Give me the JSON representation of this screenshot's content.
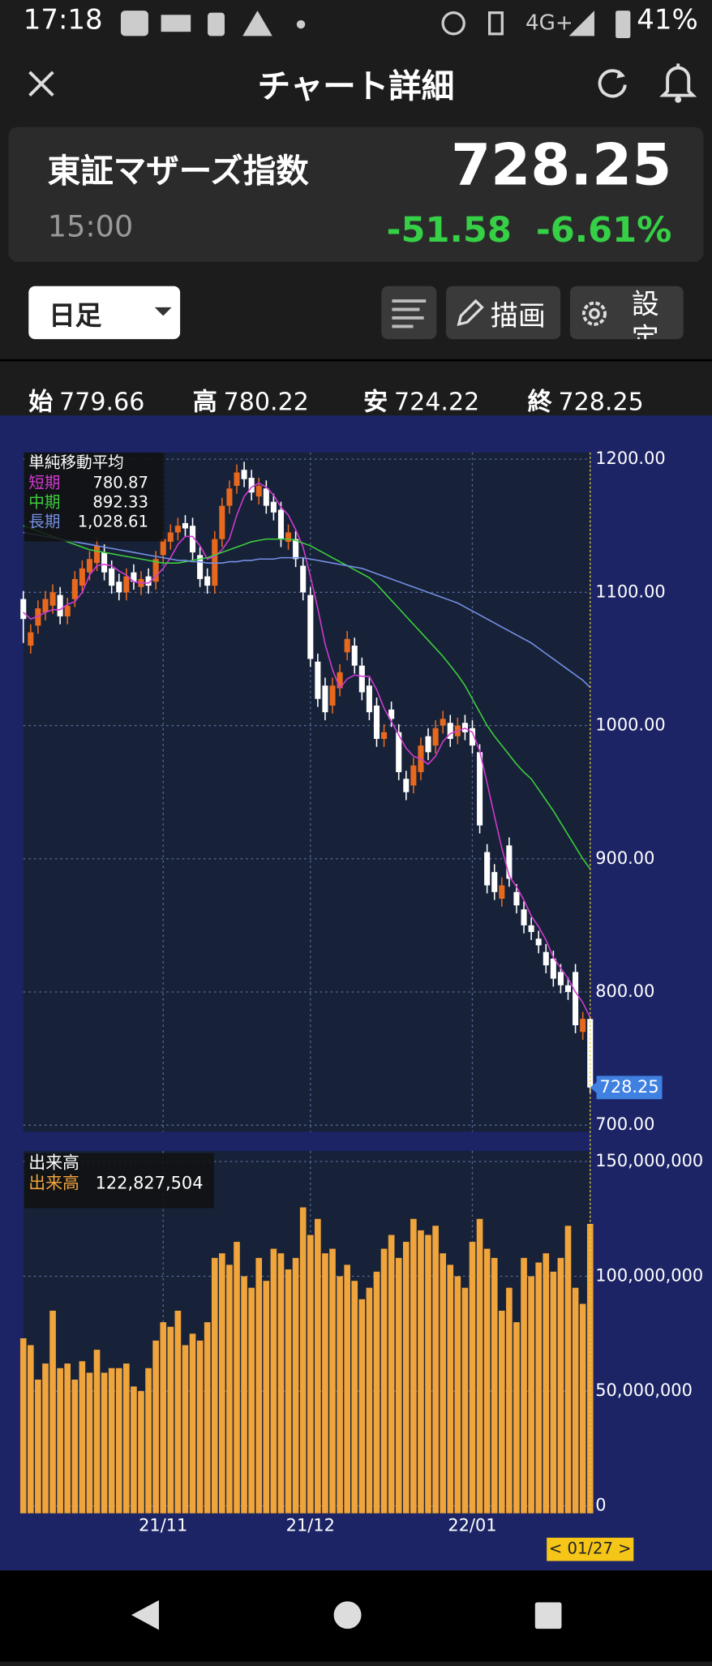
{
  "status_bar": {
    "time": "17:18",
    "network": "4G+",
    "battery": "41%"
  },
  "header": {
    "title": "チャート詳細"
  },
  "quote": {
    "name": "東証マザーズ指数",
    "time": "15:00",
    "price": "728.25",
    "change": "-51.58",
    "change_pct": "-6.61%"
  },
  "toolbar": {
    "period": "日足",
    "draw": "描画",
    "settings": "設定"
  },
  "ohlc": [
    {
      "label": "始",
      "value": "779.66"
    },
    {
      "label": "高",
      "value": "780.22"
    },
    {
      "label": "安",
      "value": "724.22"
    },
    {
      "label": "終",
      "value": "728.25"
    }
  ],
  "chart_data": {
    "type": "candlestick",
    "legend_title": "単純移動平均",
    "up_color": "#e8691e",
    "down_color": "#ffffff",
    "xlim": [
      0,
      77
    ],
    "xticks": [
      {
        "value": 19,
        "label": "21/11"
      },
      {
        "value": 39,
        "label": "21/12"
      },
      {
        "value": 61,
        "label": "22/01"
      }
    ],
    "ylim": [
      695,
      1205
    ],
    "yticks": [
      {
        "value": 700,
        "label": "700.00"
      },
      {
        "value": 800,
        "label": "800.00"
      },
      {
        "value": 900,
        "label": "900.00"
      },
      {
        "value": 1000,
        "label": "1000.00"
      },
      {
        "value": 1100,
        "label": "1100.00"
      },
      {
        "value": 1200,
        "label": "1200.00"
      }
    ],
    "grid": true,
    "current_label": "728.25",
    "cursor_label": "< 01/27 >",
    "open": [
      1095,
      1060,
      1075,
      1085,
      1090,
      1098,
      1082,
      1095,
      1105,
      1115,
      1122,
      1130,
      1118,
      1108,
      1100,
      1115,
      1104,
      1112,
      1108,
      1128,
      1138,
      1145,
      1152,
      1150,
      1128,
      1112,
      1105,
      1140,
      1165,
      1180,
      1192,
      1186,
      1172,
      1178,
      1168,
      1162,
      1138,
      1140,
      1120,
      1098,
      1048,
      1030,
      1015,
      1028,
      1055,
      1060,
      1045,
      1030,
      1015,
      990,
      1012,
      995,
      960,
      955,
      965,
      992,
      985,
      1000,
      1002,
      992,
      1002,
      998,
      980,
      905,
      890,
      870,
      910,
      875,
      862,
      850,
      840,
      830,
      825,
      815,
      805,
      815,
      770,
      779.66
    ],
    "high": [
      1101,
      1076,
      1094,
      1101,
      1106,
      1104,
      1096,
      1116,
      1124,
      1131,
      1141,
      1136,
      1124,
      1114,
      1118,
      1121,
      1116,
      1118,
      1131,
      1146,
      1151,
      1156,
      1158,
      1156,
      1134,
      1118,
      1146,
      1171,
      1184,
      1196,
      1198,
      1192,
      1186,
      1184,
      1174,
      1168,
      1151,
      1146,
      1126,
      1104,
      1054,
      1036,
      1036,
      1046,
      1071,
      1066,
      1051,
      1036,
      1021,
      1001,
      1018,
      1001,
      966,
      976,
      991,
      998,
      1004,
      1011,
      1008,
      1006,
      1008,
      1004,
      986,
      911,
      896,
      886,
      916,
      881,
      868,
      856,
      846,
      836,
      831,
      821,
      811,
      821,
      785,
      780.22
    ],
    "low": [
      1062,
      1054,
      1069,
      1079,
      1084,
      1076,
      1076,
      1089,
      1099,
      1109,
      1116,
      1109,
      1099,
      1094,
      1094,
      1102,
      1098,
      1099,
      1102,
      1122,
      1132,
      1139,
      1142,
      1124,
      1104,
      1099,
      1099,
      1134,
      1159,
      1174,
      1179,
      1169,
      1166,
      1159,
      1154,
      1134,
      1132,
      1119,
      1094,
      1044,
      1014,
      1004,
      1009,
      1022,
      1049,
      1039,
      1019,
      1004,
      984,
      984,
      999,
      959,
      944,
      949,
      959,
      974,
      979,
      994,
      984,
      986,
      989,
      979,
      919,
      874,
      869,
      864,
      879,
      859,
      844,
      839,
      829,
      814,
      804,
      799,
      794,
      769,
      764,
      724.22
    ],
    "close": [
      1080,
      1070,
      1088,
      1095,
      1100,
      1082,
      1090,
      1110,
      1118,
      1125,
      1135,
      1115,
      1105,
      1100,
      1112,
      1108,
      1110,
      1105,
      1125,
      1140,
      1145,
      1150,
      1148,
      1130,
      1110,
      1105,
      1140,
      1165,
      1178,
      1190,
      1185,
      1175,
      1180,
      1165,
      1160,
      1140,
      1145,
      1125,
      1100,
      1050,
      1020,
      1010,
      1030,
      1040,
      1065,
      1045,
      1025,
      1010,
      990,
      995,
      1005,
      965,
      950,
      970,
      985,
      980,
      998,
      1005,
      990,
      1000,
      995,
      985,
      925,
      880,
      875,
      880,
      885,
      865,
      850,
      845,
      835,
      820,
      810,
      805,
      800,
      775,
      779.83,
      728.25
    ],
    "series": [
      {
        "name": "短期",
        "color": "#d23ad2",
        "value_label": "780.87",
        "values": [
          1085,
          1080,
          1082,
          1085,
          1087,
          1087,
          1091,
          1093,
          1100,
          1113,
          1120,
          1121,
          1120,
          1116,
          1113,
          1108,
          1107,
          1107,
          1112,
          1118,
          1126,
          1136,
          1142,
          1142,
          1135,
          1125,
          1127,
          1132,
          1140,
          1158,
          1172,
          1179,
          1182,
          1179,
          1173,
          1164,
          1158,
          1147,
          1134,
          1112,
          1088,
          1061,
          1042,
          1028,
          1035,
          1038,
          1037,
          1037,
          1027,
          1013,
          1003,
          993,
          983,
          977,
          975,
          971,
          977,
          988,
          994,
          996,
          998,
          995,
          981,
          957,
          932,
          908,
          887,
          879,
          869,
          857,
          849,
          839,
          826,
          818,
          810,
          800,
          792,
          780.87
        ]
      },
      {
        "name": "中期",
        "color": "#3ccf3c",
        "value_label": "892.33",
        "values": [
          1150,
          1148,
          1146,
          1144,
          1142,
          1140,
          1138,
          1136,
          1134,
          1132,
          1131,
          1130,
          1129,
          1128,
          1127,
          1126,
          1125,
          1124,
          1123,
          1122,
          1122,
          1122,
          1123,
          1124,
          1125,
          1126,
          1128,
          1130,
          1132,
          1134,
          1136,
          1138,
          1139,
          1140,
          1140,
          1140,
          1140,
          1139,
          1137,
          1135,
          1132,
          1129,
          1126,
          1123,
          1120,
          1117,
          1114,
          1111,
          1106,
          1100,
          1094,
          1088,
          1082,
          1076,
          1070,
          1064,
          1058,
          1052,
          1045,
          1038,
          1030,
          1020,
          1010,
          1000,
          992,
          985,
          978,
          971,
          965,
          960,
          952,
          944,
          936,
          927,
          918,
          909,
          900,
          892.33
        ]
      },
      {
        "name": "長期",
        "color": "#7590e6",
        "value_label": "1,028.61",
        "values": [
          1145,
          1144,
          1143,
          1142,
          1141,
          1140,
          1139,
          1138,
          1137,
          1136,
          1135,
          1134,
          1133,
          1132,
          1131,
          1130,
          1129,
          1128,
          1127,
          1126,
          1125,
          1124,
          1124,
          1123,
          1123,
          1122,
          1122,
          1122,
          1123,
          1123,
          1124,
          1124,
          1125,
          1125,
          1125,
          1126,
          1126,
          1126,
          1126,
          1125,
          1124,
          1123,
          1122,
          1121,
          1120,
          1119,
          1118,
          1116,
          1114,
          1112,
          1110,
          1108,
          1106,
          1104,
          1102,
          1100,
          1098,
          1096,
          1094,
          1092,
          1089,
          1086,
          1083,
          1080,
          1077,
          1074,
          1071,
          1068,
          1065,
          1062,
          1058,
          1054,
          1050,
          1046,
          1042,
          1038,
          1034,
          1028.61
        ]
      }
    ],
    "volume": {
      "title": "出来高",
      "name": "出来高",
      "color": "#f0a43c",
      "value_label": "122,827,504",
      "ylim": [
        0,
        150000000
      ],
      "yticks": [
        0,
        {
          "value": 50000000,
          "label": "50,000,000"
        },
        {
          "value": 100000000,
          "label": "100,000,000"
        },
        {
          "value": 150000000,
          "label": "150,000,000"
        }
      ],
      "values": [
        73000000,
        70000000,
        55000000,
        62000000,
        85000000,
        60000000,
        62000000,
        55000000,
        63000000,
        58000000,
        68000000,
        58000000,
        60000000,
        60000000,
        62000000,
        52000000,
        50000000,
        60000000,
        72000000,
        80000000,
        78000000,
        85000000,
        70000000,
        75000000,
        72000000,
        80000000,
        108000000,
        110000000,
        105000000,
        115000000,
        100000000,
        95000000,
        108000000,
        98000000,
        112000000,
        110000000,
        103000000,
        108000000,
        130000000,
        118000000,
        125000000,
        110000000,
        112000000,
        100000000,
        105000000,
        98000000,
        90000000,
        95000000,
        102000000,
        112000000,
        118000000,
        108000000,
        115000000,
        125000000,
        120000000,
        118000000,
        122000000,
        110000000,
        105000000,
        100000000,
        95000000,
        115000000,
        125000000,
        112000000,
        108000000,
        85000000,
        95000000,
        80000000,
        108000000,
        100000000,
        106000000,
        110000000,
        102000000,
        108000000,
        122000000,
        95000000,
        88000000,
        122827504
      ]
    }
  }
}
